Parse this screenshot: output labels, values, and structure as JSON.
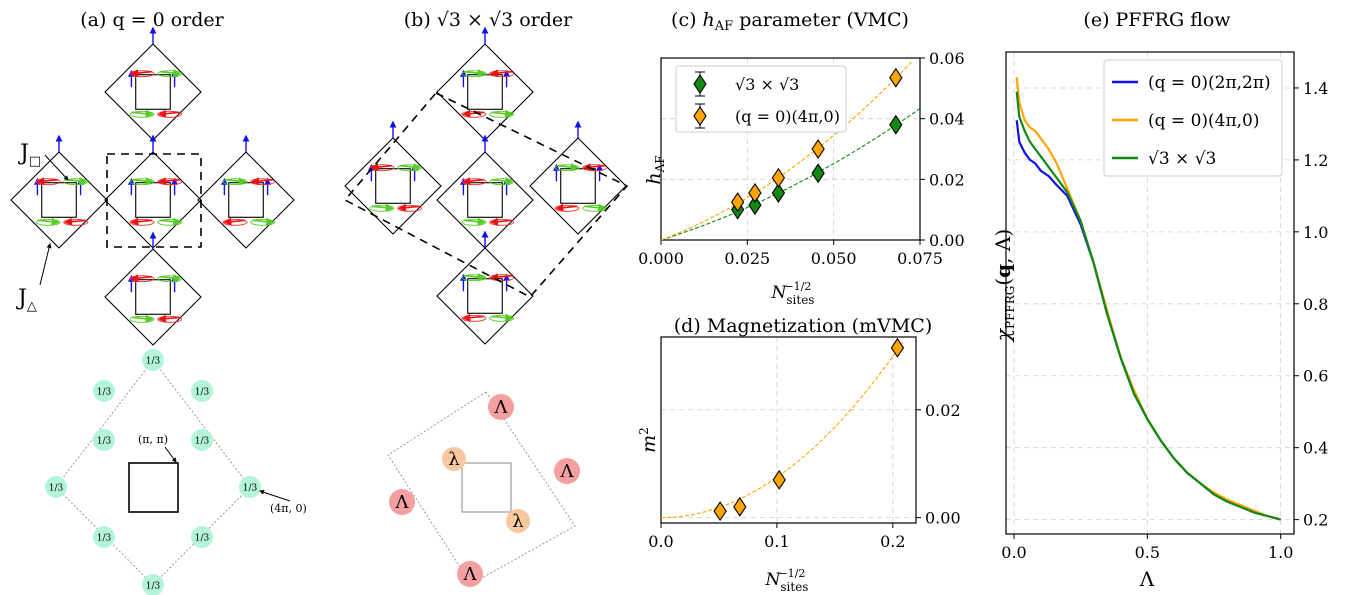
{
  "panels": {
    "a": {
      "title": "(a) q = 0 order",
      "j_square": "J",
      "j_triangle": "J"
    },
    "b": {
      "title": "(b) √3 × √3 order"
    },
    "c": {
      "title": "(c) hAF parameter (VMC)"
    },
    "d": {
      "title": "(d) Magnetization (mVMC)"
    },
    "e": {
      "title": "(e) PFFRG flow"
    }
  },
  "bz_a": {
    "site_label": "1/3",
    "label_pipi": "(π, π)",
    "label_4pi0": "(4π, 0)"
  },
  "bz_b": {
    "big": "Λ",
    "small": "λ"
  },
  "colors": {
    "blue": "#1010ee",
    "orange": "#ffa500",
    "green": "#118811",
    "red": "#ee1111",
    "lime": "#55cc22"
  },
  "chart_data": [
    {
      "id": "c",
      "type": "scatter",
      "title": "(c) hAF parameter (VMC)",
      "xlabel": "N_sites^(-1/2)",
      "ylabel": "hAF",
      "xlim": [
        0,
        0.075
      ],
      "ylim": [
        0,
        0.06
      ],
      "xticks": [
        "0.000",
        "0.025",
        "0.050",
        "0.075"
      ],
      "yticks": [
        "0.00",
        "0.02",
        "0.04",
        "0.06"
      ],
      "grid": true,
      "legend": "top-left",
      "series": [
        {
          "name": "√3 × √3",
          "color": "#118811",
          "x": [
            0.0222,
            0.0272,
            0.034,
            0.0455,
            0.068
          ],
          "y": [
            0.01,
            0.0115,
            0.0155,
            0.022,
            0.038
          ]
        },
        {
          "name": "(q = 0)(4π,0)",
          "color": "#ffa500",
          "x": [
            0.0222,
            0.0272,
            0.034,
            0.0455,
            0.068
          ],
          "y": [
            0.0125,
            0.0155,
            0.0205,
            0.03,
            0.0535
          ]
        }
      ]
    },
    {
      "id": "d",
      "type": "scatter",
      "title": "(d) Magnetization (mVMC)",
      "xlabel": "N_sites^(-1/2)",
      "ylabel": "m2",
      "xlim": [
        0,
        0.22
      ],
      "ylim": [
        -0.001,
        0.0335
      ],
      "xticks": [
        "0.0",
        "0.1",
        "0.2"
      ],
      "yticks": [
        "0.00",
        "0.02"
      ],
      "grid": true,
      "series": [
        {
          "name": "",
          "color": "#ffa500",
          "x": [
            0.051,
            0.068,
            0.102,
            0.204
          ],
          "y": [
            0.0012,
            0.002,
            0.007,
            0.0315
          ]
        }
      ]
    },
    {
      "id": "e",
      "type": "line",
      "title": "(e) PFFRG flow",
      "xlabel": "Λ",
      "ylabel": "χPFRG(q,Λ)",
      "xlim": [
        -0.03,
        1.05
      ],
      "ylim": [
        0.16,
        1.5
      ],
      "xticks": [
        "0.0",
        "0.5",
        "1.0"
      ],
      "yticks": [
        "0.2",
        "0.4",
        "0.6",
        "0.8",
        "1.0",
        "1.2",
        "1.4"
      ],
      "grid": true,
      "legend": "top-right",
      "series": [
        {
          "name": "(q = 0)(2π,2π)",
          "color": "#1010ee",
          "x": [
            0.01,
            0.02,
            0.04,
            0.06,
            0.08,
            0.1,
            0.13,
            0.16,
            0.2,
            0.25,
            0.3,
            0.35,
            0.4,
            0.45,
            0.5,
            0.55,
            0.6,
            0.65,
            0.7,
            0.75,
            0.8,
            0.85,
            0.9,
            0.95,
            1.0
          ],
          "y": [
            1.31,
            1.25,
            1.22,
            1.2,
            1.19,
            1.17,
            1.155,
            1.13,
            1.1,
            1.02,
            0.91,
            0.77,
            0.65,
            0.55,
            0.48,
            0.42,
            0.37,
            0.33,
            0.3,
            0.27,
            0.25,
            0.235,
            0.22,
            0.21,
            0.2
          ]
        },
        {
          "name": "(q = 0)(4π,0)",
          "color": "#ffa500",
          "x": [
            0.01,
            0.02,
            0.04,
            0.06,
            0.08,
            0.1,
            0.13,
            0.16,
            0.2,
            0.25,
            0.3,
            0.35,
            0.4,
            0.45,
            0.5,
            0.55,
            0.6,
            0.65,
            0.7,
            0.75,
            0.8,
            0.85,
            0.9,
            0.95,
            1.0
          ],
          "y": [
            1.43,
            1.36,
            1.31,
            1.29,
            1.28,
            1.26,
            1.23,
            1.19,
            1.12,
            1.03,
            0.91,
            0.78,
            0.65,
            0.56,
            0.48,
            0.42,
            0.37,
            0.33,
            0.3,
            0.275,
            0.255,
            0.24,
            0.225,
            0.21,
            0.2
          ]
        },
        {
          "name": "√3 × √3",
          "color": "#118811",
          "x": [
            0.01,
            0.02,
            0.04,
            0.06,
            0.08,
            0.1,
            0.13,
            0.16,
            0.2,
            0.25,
            0.3,
            0.35,
            0.4,
            0.45,
            0.5,
            0.55,
            0.6,
            0.65,
            0.7,
            0.75,
            0.8,
            0.85,
            0.9,
            0.95,
            1.0
          ],
          "y": [
            1.39,
            1.32,
            1.28,
            1.25,
            1.23,
            1.21,
            1.18,
            1.15,
            1.11,
            1.03,
            0.91,
            0.77,
            0.65,
            0.55,
            0.48,
            0.42,
            0.37,
            0.33,
            0.3,
            0.27,
            0.25,
            0.235,
            0.22,
            0.21,
            0.2
          ]
        }
      ]
    }
  ]
}
